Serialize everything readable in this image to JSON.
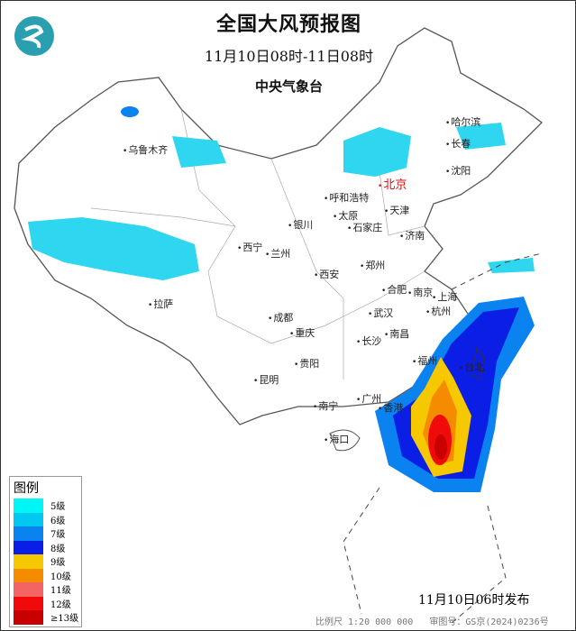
{
  "header": {
    "title": "全国大风预报图",
    "period": "11月10日08时-11日08时",
    "issuer": "中央气象台"
  },
  "logo": {
    "icon": "cma-logo-icon",
    "color": "#2a9fb0"
  },
  "cities": [
    "乌鲁木齐",
    "哈尔滨",
    "长春",
    "沈阳",
    "北京",
    "呼和浩特",
    "天津",
    "银川",
    "太原",
    "石家庄",
    "济南",
    "西宁",
    "兰州",
    "西安",
    "郑州",
    "合肥",
    "南京",
    "上海",
    "拉萨",
    "成都",
    "武汉",
    "杭州",
    "重庆",
    "长沙",
    "南昌",
    "福州",
    "台北",
    "贵阳",
    "昆明",
    "南宁",
    "广州",
    "香港",
    "海口"
  ],
  "legend": {
    "title": "图例",
    "items": [
      {
        "label": "5级",
        "color": "#00f5f5"
      },
      {
        "label": "6级",
        "color": "#00c8f0"
      },
      {
        "label": "7级",
        "color": "#0a82f0"
      },
      {
        "label": "8级",
        "color": "#0a1ee6"
      },
      {
        "label": "9级",
        "color": "#f5c800"
      },
      {
        "label": "10级",
        "color": "#f58c00"
      },
      {
        "label": "11级",
        "color": "#f56464"
      },
      {
        "label": "12级",
        "color": "#f00a0a"
      },
      {
        "label": "≥13级",
        "color": "#c80000"
      }
    ]
  },
  "footer": {
    "issued": "11月10日06时发布",
    "scale": "比例尺 1:20 000 000",
    "approval": "审图号：GS京(2024)0236号"
  }
}
